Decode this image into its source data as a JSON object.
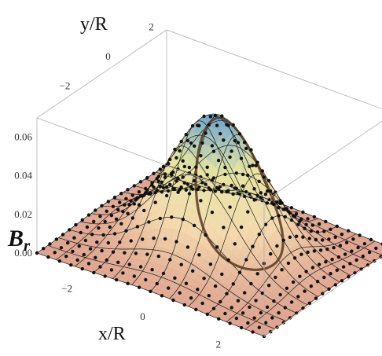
{
  "chart_data": {
    "type": "surface3d",
    "title": "",
    "xlabel": "x/R",
    "ylabel": "y/R",
    "zlabel": "B",
    "zlabel_subscript": "r",
    "x_range": [
      -3,
      3
    ],
    "y_range": [
      -3,
      3
    ],
    "z_range": [
      0,
      0.07
    ],
    "x_ticks": [
      "−2",
      "0",
      "2"
    ],
    "y_ticks": [
      "−2",
      "0",
      "2"
    ],
    "z_ticks": [
      "0.00",
      "0.02",
      "0.04",
      "0.06"
    ],
    "peak": {
      "x": 0,
      "y": 0,
      "z": 0.07
    },
    "surface": {
      "function": "gaussian",
      "peak_value": 0.07,
      "width": 1.1
    },
    "mesh_lines": 13,
    "sample_grid_points": 21,
    "ring": {
      "radius": 1,
      "color": "#5a3a20"
    },
    "colors": {
      "high": "#6fa6cf",
      "mid_high": "#e6e6a0",
      "mid": "#f3d6a8",
      "low": "#dca08a",
      "mesh": "#1a1a1a",
      "points": "#111111",
      "box": "#b0b0b0"
    }
  }
}
